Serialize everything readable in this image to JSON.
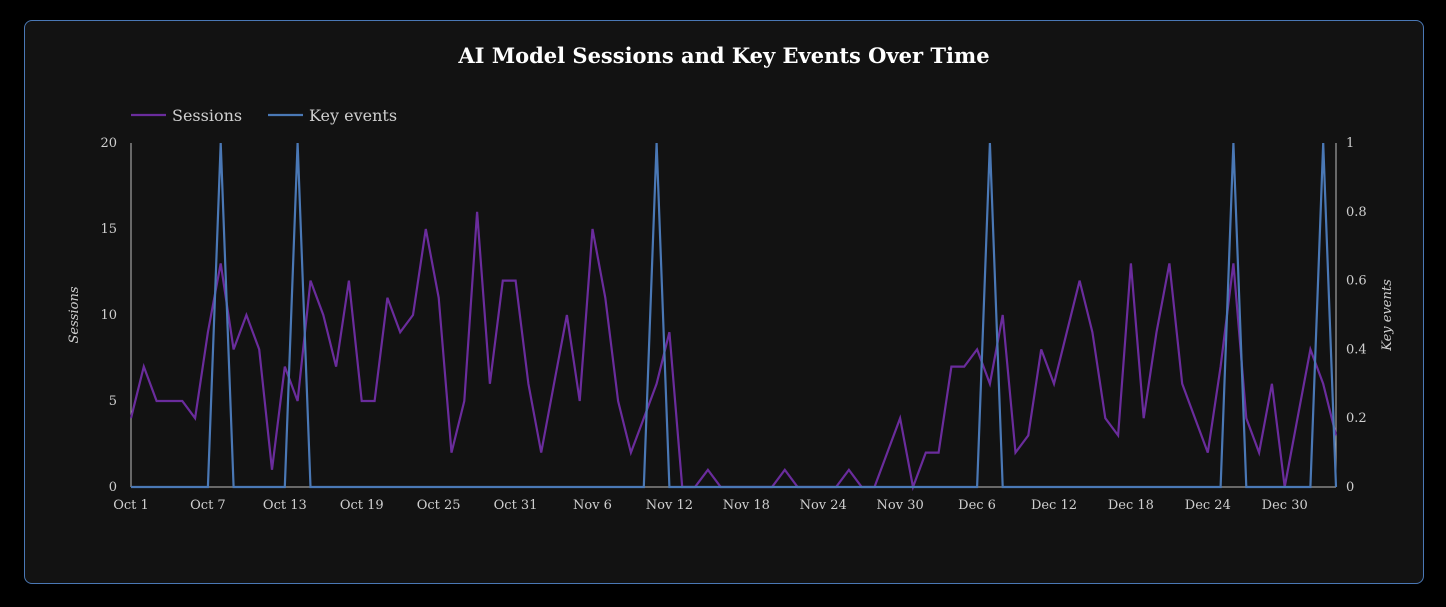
{
  "chart_data": {
    "type": "line",
    "title": "AI Model Sessions and Key Events Over Time",
    "ylabel": "Sessions",
    "y2label": "Key events",
    "ylim": [
      0,
      20
    ],
    "y2lim": [
      0,
      1
    ],
    "yticks": [
      "0",
      "5",
      "10",
      "15",
      "20"
    ],
    "y2ticks": [
      "0",
      "0.2",
      "0.4",
      "0.6",
      "0.8",
      "1"
    ],
    "xticks": [
      "Oct 1",
      "Oct 7",
      "Oct 13",
      "Oct 19",
      "Oct 25",
      "Oct 31",
      "Nov 6",
      "Nov 12",
      "Nov 18",
      "Nov 24",
      "Nov 30",
      "Dec 6",
      "Dec 12",
      "Dec 18",
      "Dec 24",
      "Dec 30"
    ],
    "grid": false,
    "legend_position": "top-left",
    "x_start": "Oct 1",
    "x_end": "Dec 31",
    "series": [
      {
        "name": "Sessions",
        "axis": "left",
        "color": "#6a2c9c",
        "values": [
          4,
          7,
          5,
          5,
          5,
          4,
          9,
          13,
          8,
          10,
          8,
          1,
          7,
          5,
          12,
          10,
          7,
          12,
          5,
          5,
          11,
          9,
          10,
          15,
          11,
          2,
          5,
          16,
          6,
          12,
          12,
          6,
          2,
          6,
          10,
          5,
          15,
          11,
          5,
          2,
          4,
          6,
          9,
          0,
          0,
          1,
          0,
          0,
          0,
          0,
          0,
          1,
          0,
          0,
          0,
          0,
          1,
          0,
          0,
          2,
          4,
          0,
          2,
          2,
          7,
          7,
          8,
          6,
          10,
          2,
          3,
          8,
          6,
          9,
          12,
          9,
          4,
          3,
          13,
          4,
          9,
          13,
          6,
          4,
          2,
          7,
          13,
          4,
          2,
          6,
          0,
          4,
          8,
          6,
          3
        ]
      },
      {
        "name": "Key events",
        "axis": "right",
        "color": "#4a78b5",
        "values": [
          0,
          0,
          0,
          0,
          0,
          0,
          0,
          1,
          0,
          0,
          0,
          0,
          0,
          1,
          0,
          0,
          0,
          0,
          0,
          0,
          0,
          0,
          0,
          0,
          0,
          0,
          0,
          0,
          0,
          0,
          0,
          0,
          0,
          0,
          0,
          0,
          0,
          0,
          0,
          0,
          0,
          1,
          0,
          0,
          0,
          0,
          0,
          0,
          0,
          0,
          0,
          0,
          0,
          0,
          0,
          0,
          0,
          0,
          0,
          0,
          0,
          0,
          0,
          0,
          0,
          0,
          0,
          1,
          0,
          0,
          0,
          0,
          0,
          0,
          0,
          0,
          0,
          0,
          0,
          0,
          0,
          0,
          0,
          0,
          0,
          0,
          1,
          0,
          0,
          0,
          0,
          0,
          0,
          1,
          0
        ]
      }
    ]
  }
}
